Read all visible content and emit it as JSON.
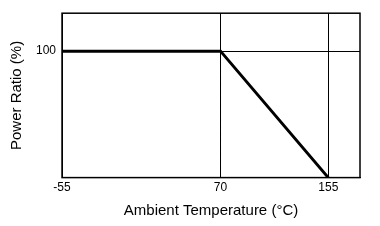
{
  "chart_data": {
    "type": "line",
    "x_label": "Ambient Temperature (°C)",
    "y_label": "Power Ratio (%)",
    "series": [
      {
        "x": [
          -55,
          70,
          155
        ],
        "values": [
          100,
          100,
          0
        ],
        "color": "#000000",
        "line_style": "solid"
      },
      {
        "x": [
          70,
          70
        ],
        "values": [
          0,
          100
        ],
        "color": "#000000",
        "line_style": "dashed"
      }
    ],
    "xlim": [
      -55,
      180
    ],
    "xticks": [
      -55,
      70,
      155
    ],
    "ylim": [
      0,
      130
    ],
    "yticks": [
      100
    ],
    "grid": true
  }
}
